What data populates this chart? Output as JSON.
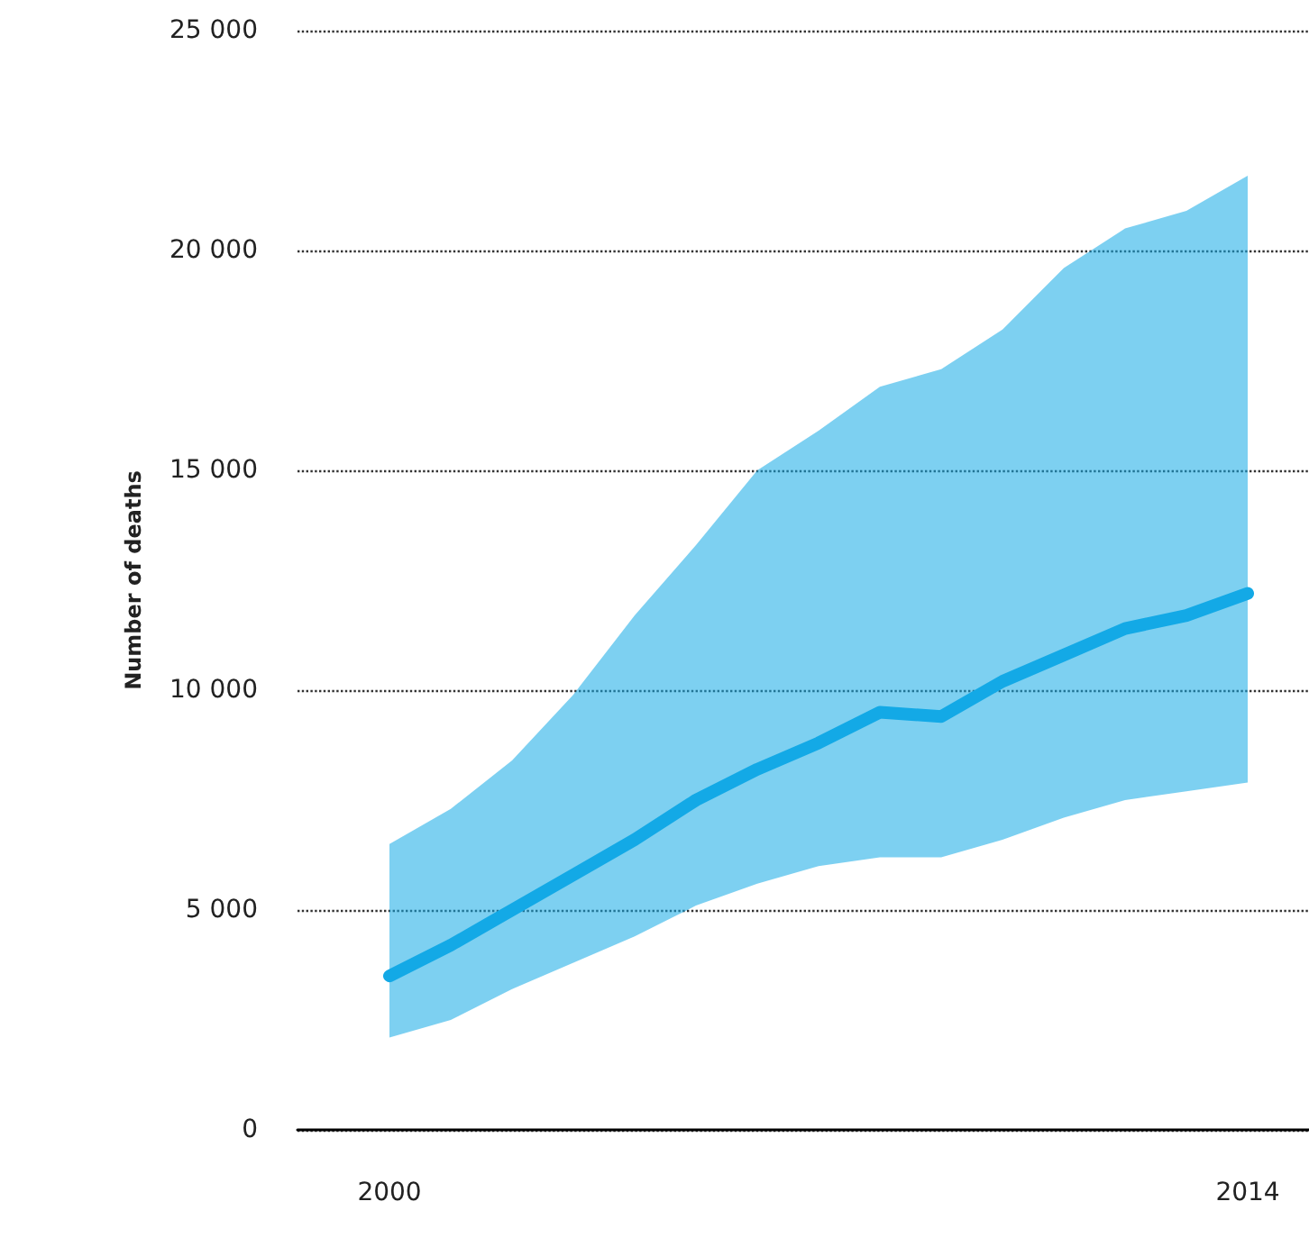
{
  "chart_data": {
    "type": "line",
    "ylabel": "Number of deaths",
    "x": [
      2000,
      2001,
      2002,
      2003,
      2004,
      2005,
      2006,
      2007,
      2008,
      2009,
      2010,
      2011,
      2012,
      2013,
      2014
    ],
    "series": [
      {
        "color": "#13a9e6",
        "values": [
          3500,
          4200,
          5000,
          5800,
          6600,
          7500,
          8200,
          8800,
          9500,
          9400,
          10200,
          10800,
          11400,
          11700,
          12200
        ],
        "lower": [
          2100,
          2500,
          3200,
          3800,
          4400,
          5100,
          5600,
          6000,
          6200,
          6200,
          6600,
          7100,
          7500,
          7700,
          7900
        ],
        "upper": [
          6500,
          7300,
          8400,
          9900,
          11700,
          13300,
          15000,
          15900,
          16900,
          17300,
          18200,
          19600,
          20500,
          20900,
          21700
        ]
      }
    ],
    "xlim": [
      1998.5,
      2015
    ],
    "xticks": [
      2000,
      2014
    ],
    "ylim": [
      0,
      25000
    ],
    "yticks": [
      {
        "value": 0,
        "label": "0"
      },
      {
        "value": 5000,
        "label": "5 000"
      },
      {
        "value": 10000,
        "label": "10 000"
      },
      {
        "value": 15000,
        "label": "15 000"
      },
      {
        "value": 20000,
        "label": "20 000"
      },
      {
        "value": 25000,
        "label": "25 000"
      }
    ],
    "grid": "y",
    "marker": "none",
    "line_style": "solid"
  }
}
